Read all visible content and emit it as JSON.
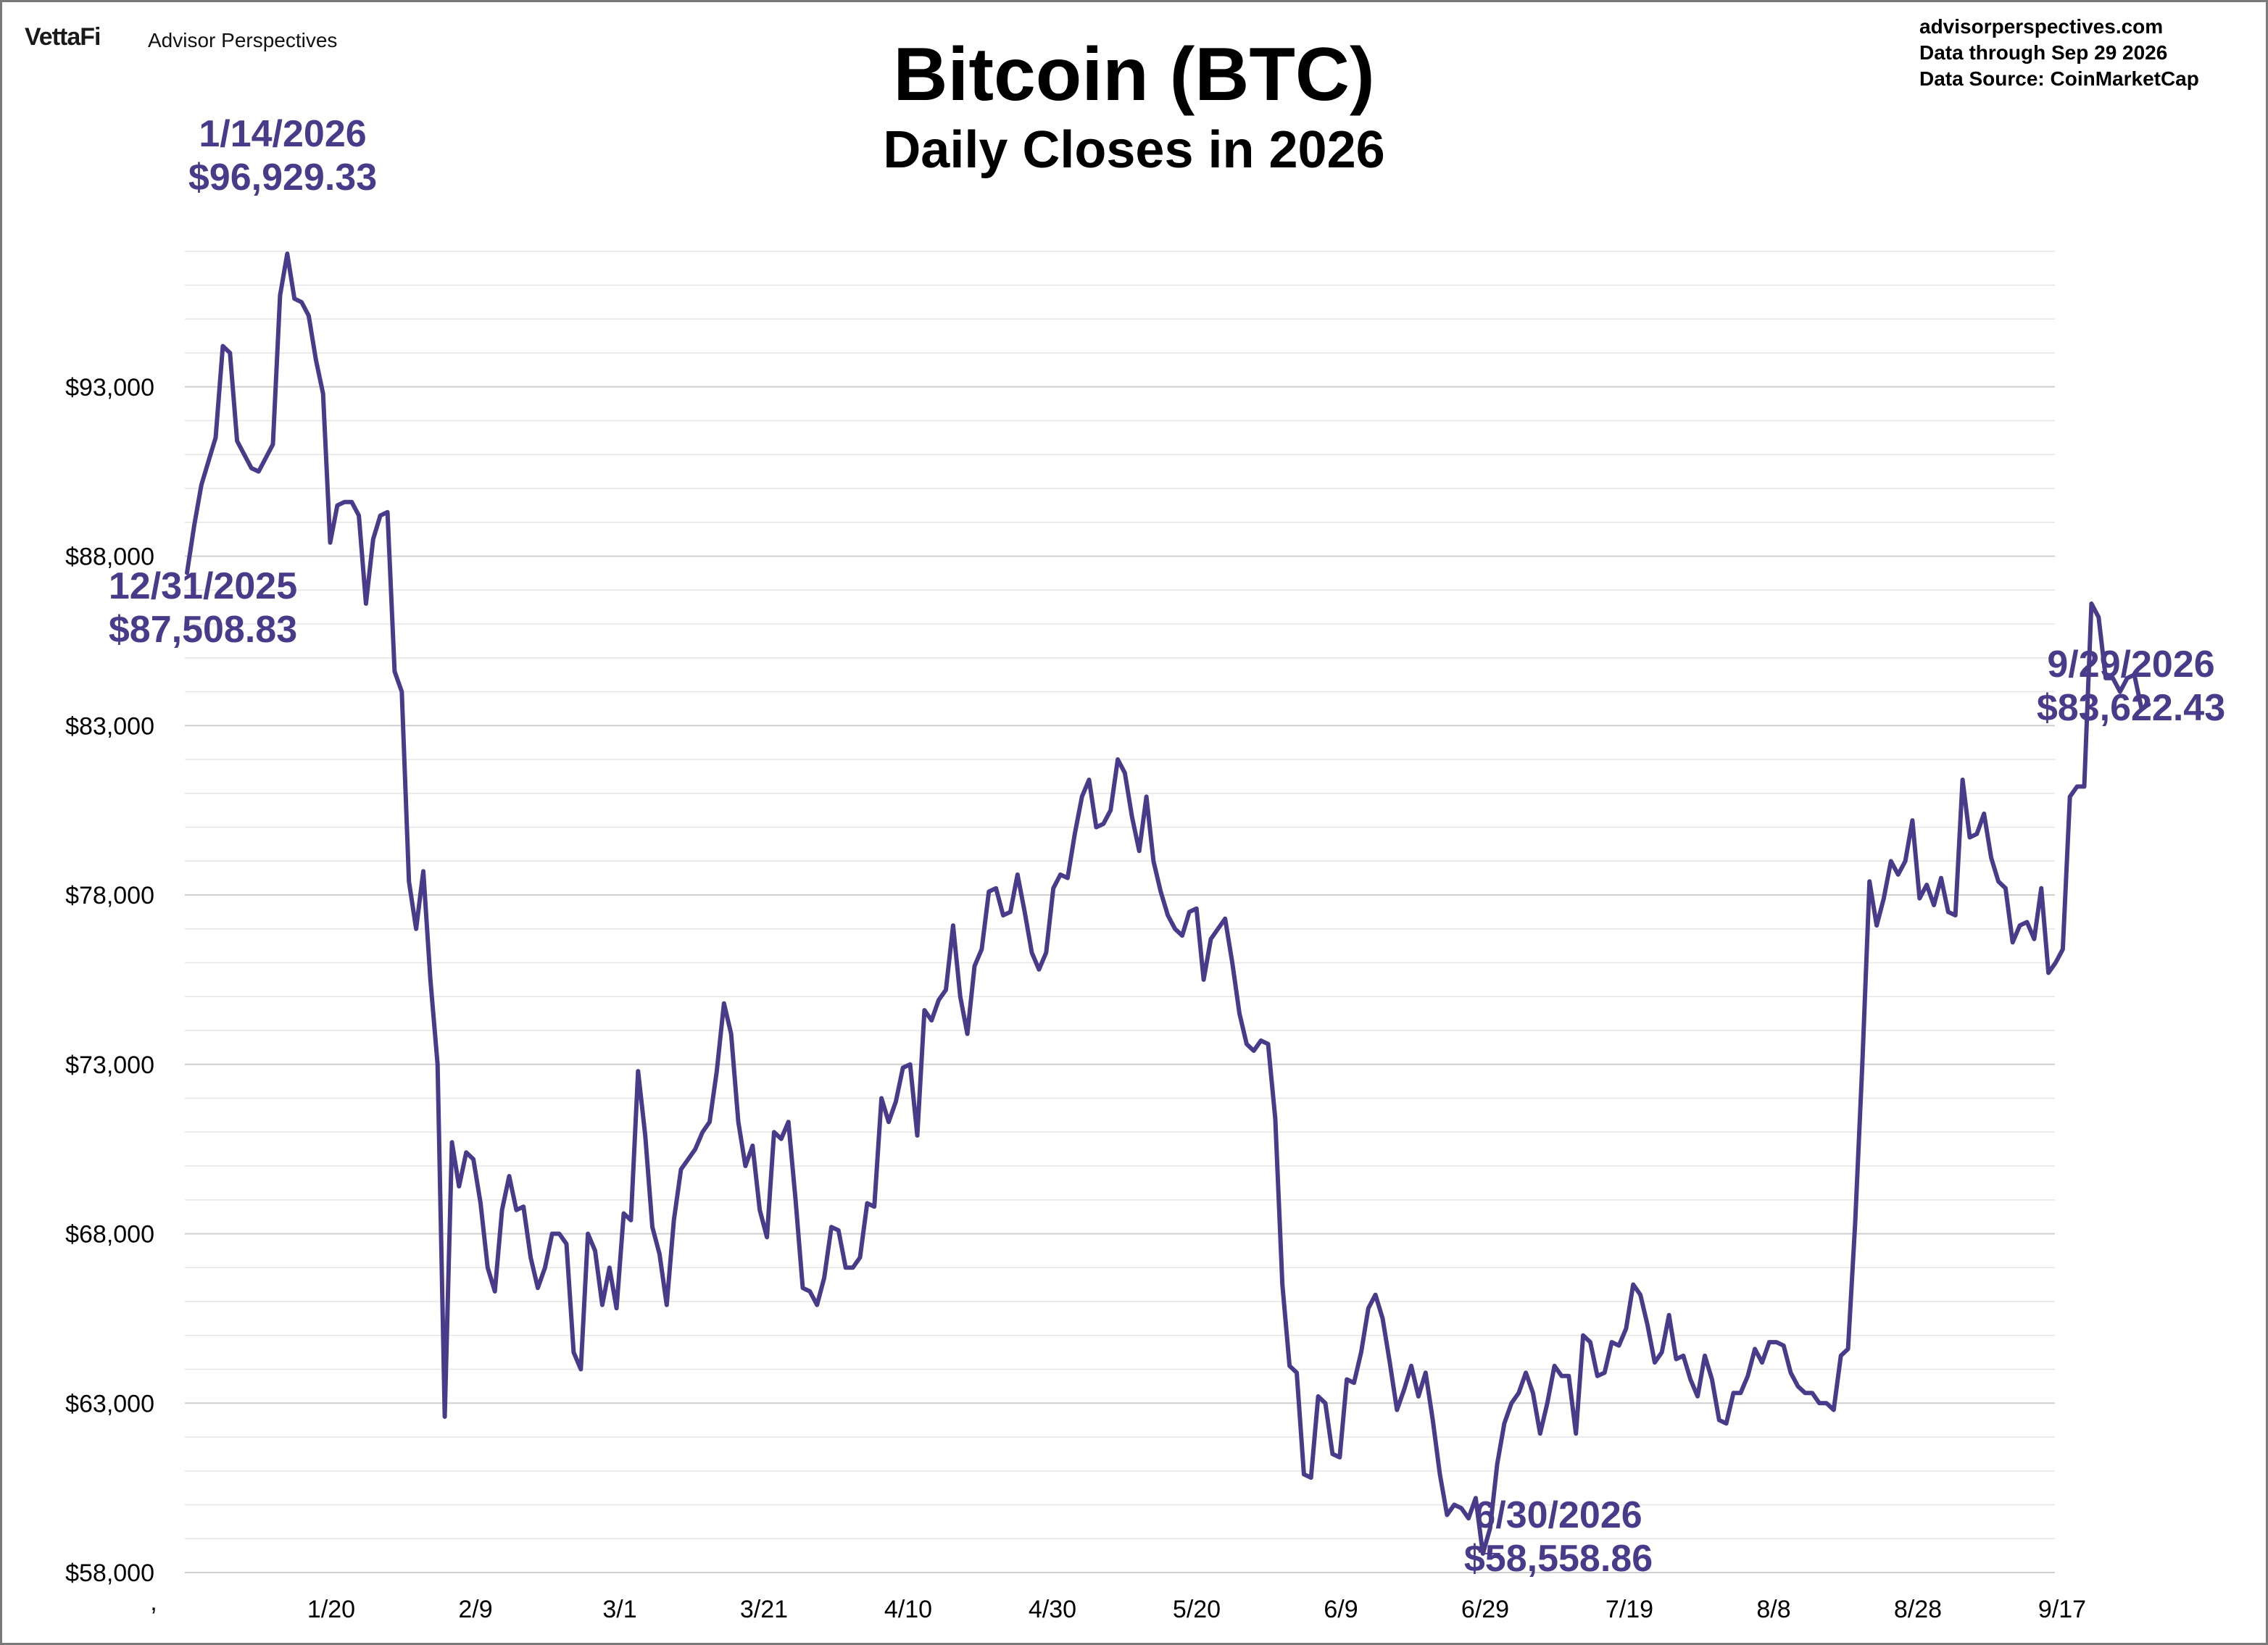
{
  "header": {
    "logo": "VettaFi",
    "brand": "Advisor Perspectives",
    "website": "advisorperspectives.com",
    "data_through": "Data through  Sep 29 2026",
    "data_source": "Data Source:  CoinMarketCap"
  },
  "colors": {
    "line": "#4a3a8a",
    "grid": "#cfcfcf",
    "annotation": "#4a3a8a"
  },
  "chart_data": {
    "type": "line",
    "title": "Bitcoin (BTC)",
    "subtitle": "Daily Closes in 2026",
    "xlabel": "",
    "ylabel": "",
    "ylim": [
      58000,
      98000
    ],
    "grid": true,
    "y_major_ticks": [
      58000,
      63000,
      68000,
      73000,
      78000,
      83000,
      88000,
      93000
    ],
    "y_tick_labels": [
      "$58,000",
      "$63,000",
      "$68,000",
      "$73,000",
      "$78,000",
      "$83,000",
      "$88,000",
      "$93,000"
    ],
    "x_ticks": [
      {
        "label": "1/20",
        "day": 20
      },
      {
        "label": "2/9",
        "day": 40
      },
      {
        "label": "3/1",
        "day": 60
      },
      {
        "label": "3/21",
        "day": 80
      },
      {
        "label": "4/10",
        "day": 100
      },
      {
        "label": "4/30",
        "day": 120
      },
      {
        "label": "5/20",
        "day": 140
      },
      {
        "label": "6/9",
        "day": 160
      },
      {
        "label": "6/29",
        "day": 180
      },
      {
        "label": "7/19",
        "day": 200
      },
      {
        "label": "8/8",
        "day": 220
      },
      {
        "label": "8/28",
        "day": 240
      },
      {
        "label": "9/17",
        "day": 260
      }
    ],
    "x_axis_start_label": ",",
    "series": [
      {
        "values": [
          87509,
          88900,
          90100,
          90800,
          91500,
          94200,
          94000,
          91400,
          91000,
          90600,
          90500,
          90900,
          91300,
          95700,
          96929,
          95600,
          95500,
          95100,
          93800,
          92800,
          88400,
          89500,
          89600,
          89600,
          89200,
          86600,
          88500,
          89200,
          89300,
          84600,
          84000,
          78400,
          77000,
          78700,
          75500,
          73000,
          62600,
          70700,
          69400,
          70400,
          70200,
          68900,
          67000,
          66300,
          68700,
          69700,
          68700,
          68800,
          67300,
          66400,
          67000,
          68000,
          68000,
          67700,
          64500,
          64000,
          68000,
          67500,
          65900,
          67000,
          65800,
          68600,
          68400,
          72800,
          70900,
          68200,
          67400,
          65900,
          68400,
          69900,
          70200,
          70500,
          71000,
          71300,
          72800,
          74800,
          73900,
          71300,
          70000,
          70600,
          68700,
          67900,
          71000,
          70800,
          71300,
          69000,
          66400,
          66300,
          65900,
          66700,
          68200,
          68100,
          67000,
          67000,
          67300,
          68900,
          68800,
          72000,
          71300,
          71900,
          72900,
          73000,
          70900,
          74600,
          74300,
          74900,
          75200,
          77100,
          75000,
          73900,
          75900,
          76400,
          78100,
          78200,
          77400,
          77500,
          78600,
          77500,
          76300,
          75800,
          76300,
          78200,
          78600,
          78500,
          79800,
          80900,
          81400,
          80000,
          80100,
          80500,
          82000,
          81600,
          80300,
          79300,
          80900,
          79000,
          78100,
          77400,
          77000,
          76800,
          77500,
          77600,
          75500,
          76700,
          77000,
          77300,
          76000,
          74500,
          73600,
          73400,
          73700,
          73600,
          71400,
          66500,
          64100,
          63900,
          60900,
          60800,
          63200,
          63000,
          61500,
          61400,
          63700,
          63600,
          64500,
          65800,
          66200,
          65500,
          64200,
          62800,
          63400,
          64100,
          63200,
          63900,
          62500,
          60900,
          59700,
          60000,
          59900,
          59600,
          60200,
          58559,
          59300,
          61200,
          62400,
          63000,
          63300,
          63900,
          63300,
          62100,
          63000,
          64100,
          63800,
          63800,
          62100,
          65000,
          64800,
          63800,
          63900,
          64800,
          64700,
          65200,
          66500,
          66200,
          65300,
          64200,
          64500,
          65600,
          64300,
          64400,
          63700,
          63200,
          64400,
          63700,
          62500,
          62400,
          63300,
          63300,
          63800,
          64600,
          64200,
          64800,
          64800,
          64700,
          63900,
          63500,
          63300,
          63300,
          63000,
          63000,
          62800,
          64400,
          64600,
          68300,
          73000,
          78400,
          77100,
          77900,
          79000,
          78600,
          79000,
          80200,
          77900,
          78300,
          77700,
          78500,
          77500,
          77400,
          81400,
          79700,
          79800,
          80400,
          79100,
          78400,
          78200,
          76600,
          77100,
          77200,
          76700,
          78200,
          75700,
          76000,
          76400,
          80900,
          81200,
          81200,
          86600,
          86200,
          84400,
          84400,
          84000,
          84400,
          84500,
          83500,
          83622
        ],
        "last_day": 272
      }
    ],
    "annotations": [
      {
        "date": "12/31/2025",
        "value": "$87,508.83"
      },
      {
        "date": "1/14/2026",
        "value": "$96,929.33"
      },
      {
        "date": "6/30/2026",
        "value": "$58,558.86"
      },
      {
        "date": "9/29/2026",
        "value": "$83,622.43"
      }
    ]
  }
}
